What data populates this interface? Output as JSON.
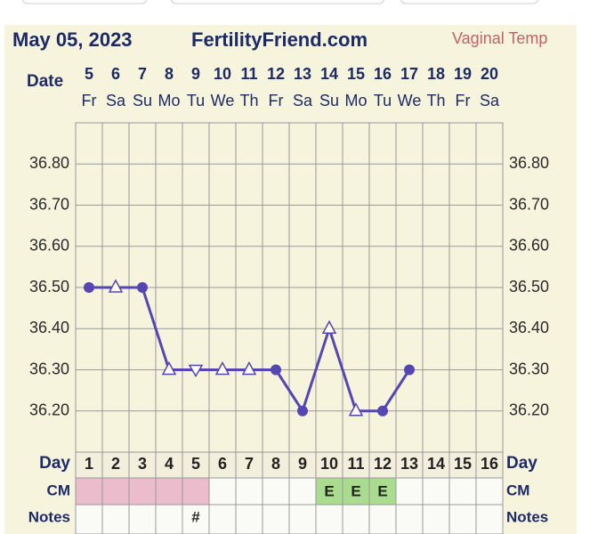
{
  "chart_data": {
    "type": "line",
    "title": "May 05, 2023",
    "site": "FertilityFriend.com",
    "measure": "Vaginal Temp",
    "date_label": "Date",
    "day_label": "Day",
    "cm_label": "CM",
    "notes_label": "Notes",
    "dates": [
      5,
      6,
      7,
      8,
      9,
      10,
      11,
      12,
      13,
      14,
      15,
      16,
      17,
      18,
      19,
      20
    ],
    "weekdays": [
      "Fr",
      "Sa",
      "Su",
      "Mo",
      "Tu",
      "We",
      "Th",
      "Fr",
      "Sa",
      "Su",
      "Mo",
      "Tu",
      "We",
      "Th",
      "Fr",
      "Sa"
    ],
    "categories": [
      1,
      2,
      3,
      4,
      5,
      6,
      7,
      8,
      9,
      10,
      11,
      12,
      13,
      14,
      15,
      16
    ],
    "series": [
      {
        "color": "#5646b4",
        "values": [
          36.5,
          36.5,
          36.5,
          36.3,
          36.3,
          36.3,
          36.3,
          36.3,
          36.2,
          36.4,
          36.2,
          36.2,
          36.3,
          null,
          null,
          null
        ],
        "markers": [
          "dot",
          "triangle",
          "dot",
          "triangle",
          "inverted-triangle",
          "triangle",
          "triangle",
          "dot",
          "dot",
          "triangle",
          "triangle",
          "dot",
          "dot",
          null,
          null,
          null
        ]
      }
    ],
    "cm": [
      null,
      null,
      null,
      null,
      null,
      null,
      null,
      null,
      null,
      "E",
      "E",
      "E",
      null,
      null,
      null,
      null
    ],
    "cm_colors": [
      "#ebbccb",
      "#ebbccb",
      "#ebbccb",
      "#ebbccb",
      "#ebbccb",
      null,
      null,
      null,
      null,
      "#a9dc8e",
      "#a9dc8e",
      "#a9dc8e",
      null,
      null,
      null,
      null
    ],
    "notes": [
      null,
      null,
      null,
      null,
      "#",
      null,
      null,
      null,
      null,
      null,
      null,
      null,
      null,
      null,
      null,
      null
    ],
    "ylim": [
      36.1,
      36.9
    ],
    "yticks": [
      {
        "value": 36.2,
        "label": "36.20"
      },
      {
        "value": 36.3,
        "label": "36.30"
      },
      {
        "value": 36.4,
        "label": "36.40"
      },
      {
        "value": 36.5,
        "label": "36.50"
      },
      {
        "value": 36.6,
        "label": "36.60"
      },
      {
        "value": 36.7,
        "label": "36.70"
      },
      {
        "value": 36.8,
        "label": "36.80"
      }
    ],
    "grid": true
  }
}
